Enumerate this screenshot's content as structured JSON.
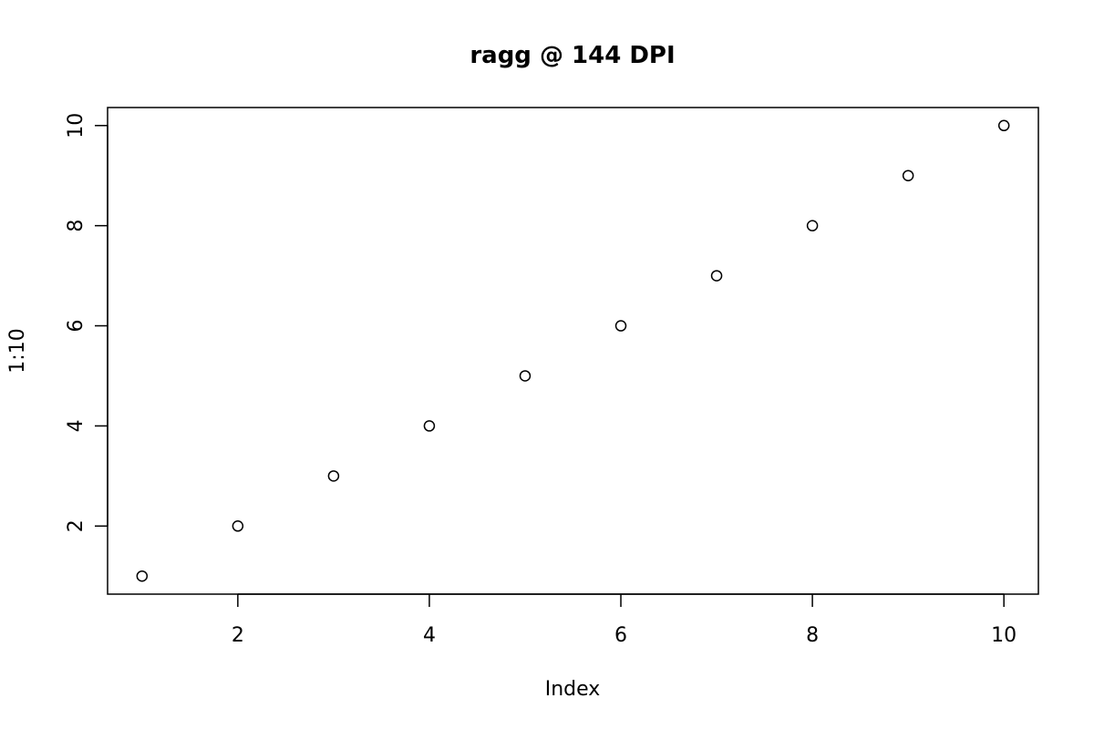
{
  "chart_data": {
    "type": "scatter",
    "title": "ragg @ 144 DPI",
    "xlabel": "Index",
    "ylabel": "1:10",
    "x": [
      1,
      2,
      3,
      4,
      5,
      6,
      7,
      8,
      9,
      10
    ],
    "y": [
      1,
      2,
      3,
      4,
      5,
      6,
      7,
      8,
      9,
      10
    ],
    "xlim": [
      0.64,
      10.36
    ],
    "ylim": [
      0.64,
      10.36
    ],
    "xticks": [
      2,
      4,
      6,
      8,
      10
    ],
    "yticks": [
      2,
      4,
      6,
      8,
      10
    ],
    "grid": false,
    "legend": "none",
    "marker": "open-circle",
    "color": "#000000"
  }
}
